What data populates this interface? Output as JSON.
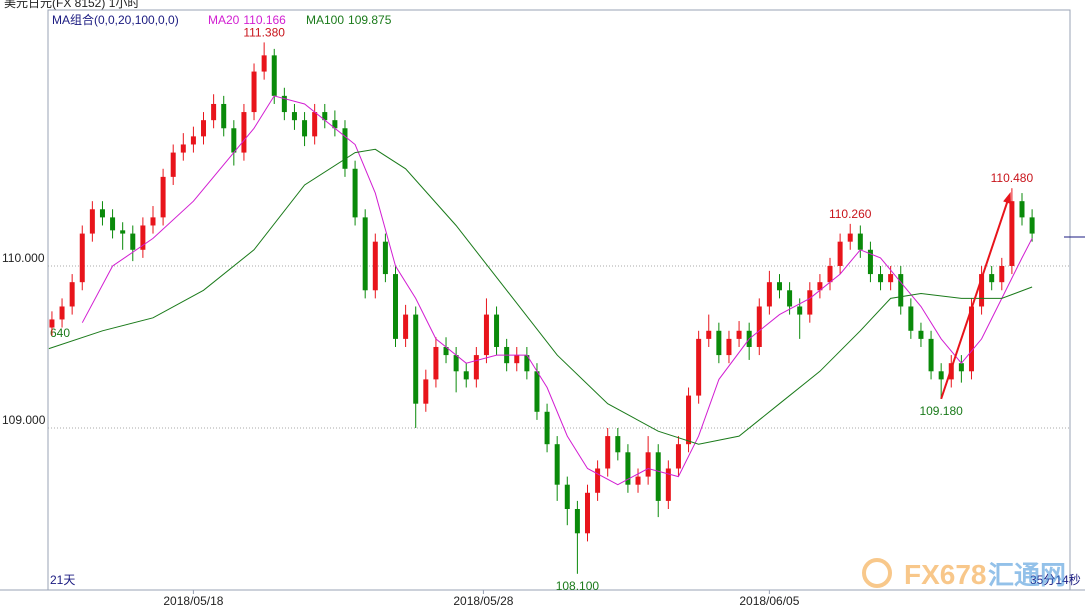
{
  "chart_data": {
    "type": "candlestick",
    "title": "美元日元(FX 8152)  1小时",
    "indicator": "MA组合(0,0,20,100,0,0)",
    "period_label": "21天",
    "countdown": "35分14秒",
    "edge_label": "640",
    "watermark": [
      "FX678",
      "汇通网"
    ],
    "up_color": "#e8141b",
    "down_color": "#0a8a0a",
    "ylim": [
      108.0,
      111.58
    ],
    "yticks": [
      {
        "value": 109,
        "label": "109.000"
      },
      {
        "value": 110,
        "label": "110.000"
      }
    ],
    "grid": true,
    "xlim": [
      -0.39,
      100.75
    ],
    "xticks": [
      {
        "value": 14,
        "label": "2018/05/18"
      },
      {
        "value": 42.7,
        "label": "2018/05/28"
      },
      {
        "value": 71,
        "label": "2018/06/05"
      }
    ],
    "ohlc": [
      [
        109.62,
        109.72,
        109.57,
        109.67
      ],
      [
        109.67,
        109.8,
        109.62,
        109.75
      ],
      [
        109.75,
        109.95,
        109.7,
        109.9
      ],
      [
        109.9,
        110.25,
        109.85,
        110.2
      ],
      [
        110.2,
        110.4,
        110.15,
        110.35
      ],
      [
        110.35,
        110.4,
        110.25,
        110.3
      ],
      [
        110.3,
        110.35,
        110.17,
        110.22
      ],
      [
        110.22,
        110.27,
        110.1,
        110.2
      ],
      [
        110.2,
        110.25,
        110.03,
        110.1
      ],
      [
        110.1,
        110.3,
        110.05,
        110.25
      ],
      [
        110.25,
        110.37,
        110.2,
        110.3
      ],
      [
        110.3,
        110.6,
        110.25,
        110.55
      ],
      [
        110.55,
        110.75,
        110.5,
        110.7
      ],
      [
        110.7,
        110.82,
        110.65,
        110.75
      ],
      [
        110.75,
        110.86,
        110.7,
        110.8
      ],
      [
        110.8,
        110.95,
        110.75,
        110.9
      ],
      [
        110.9,
        111.06,
        110.85,
        111.0
      ],
      [
        111.0,
        111.05,
        110.8,
        110.85
      ],
      [
        110.85,
        110.9,
        110.62,
        110.7
      ],
      [
        110.7,
        111.0,
        110.65,
        110.95
      ],
      [
        110.95,
        111.25,
        110.9,
        111.2
      ],
      [
        111.2,
        111.38,
        111.15,
        111.3
      ],
      [
        111.3,
        111.34,
        111.0,
        111.05
      ],
      [
        111.05,
        111.1,
        110.9,
        110.95
      ],
      [
        110.95,
        111.0,
        110.84,
        110.9
      ],
      [
        110.9,
        110.95,
        110.74,
        110.8
      ],
      [
        110.8,
        111.0,
        110.75,
        110.95
      ],
      [
        110.95,
        111.0,
        110.85,
        110.9
      ],
      [
        110.9,
        110.96,
        110.8,
        110.85
      ],
      [
        110.85,
        110.9,
        110.55,
        110.6
      ],
      [
        110.6,
        110.65,
        110.25,
        110.3
      ],
      [
        110.3,
        110.35,
        109.8,
        109.85
      ],
      [
        109.85,
        110.2,
        109.8,
        110.15
      ],
      [
        110.15,
        110.2,
        109.9,
        109.95
      ],
      [
        109.95,
        110.0,
        109.5,
        109.55
      ],
      [
        109.55,
        109.76,
        109.5,
        109.7
      ],
      [
        109.7,
        109.75,
        109.0,
        109.15
      ],
      [
        109.15,
        109.36,
        109.1,
        109.3
      ],
      [
        109.3,
        109.56,
        109.25,
        109.5
      ],
      [
        109.5,
        109.56,
        109.4,
        109.45
      ],
      [
        109.45,
        109.5,
        109.22,
        109.35
      ],
      [
        109.35,
        109.4,
        109.25,
        109.3
      ],
      [
        109.3,
        109.5,
        109.25,
        109.45
      ],
      [
        109.45,
        109.8,
        109.4,
        109.7
      ],
      [
        109.7,
        109.75,
        109.45,
        109.5
      ],
      [
        109.5,
        109.55,
        109.35,
        109.4
      ],
      [
        109.4,
        109.5,
        109.35,
        109.45
      ],
      [
        109.45,
        109.5,
        109.3,
        109.35
      ],
      [
        109.35,
        109.4,
        109.05,
        109.1
      ],
      [
        109.1,
        109.15,
        108.85,
        108.9
      ],
      [
        108.9,
        108.95,
        108.55,
        108.65
      ],
      [
        108.65,
        108.7,
        108.4,
        108.5
      ],
      [
        108.5,
        108.55,
        108.1,
        108.35
      ],
      [
        108.35,
        108.65,
        108.3,
        108.6
      ],
      [
        108.6,
        108.8,
        108.55,
        108.75
      ],
      [
        108.75,
        109.0,
        108.7,
        108.95
      ],
      [
        108.95,
        109.0,
        108.8,
        108.85
      ],
      [
        108.85,
        108.9,
        108.6,
        108.65
      ],
      [
        108.65,
        108.75,
        108.6,
        108.7
      ],
      [
        108.7,
        108.95,
        108.65,
        108.85
      ],
      [
        108.85,
        108.9,
        108.45,
        108.55
      ],
      [
        108.55,
        108.8,
        108.5,
        108.75
      ],
      [
        108.75,
        108.95,
        108.7,
        108.9
      ],
      [
        108.9,
        109.25,
        108.85,
        109.2
      ],
      [
        109.2,
        109.6,
        109.15,
        109.55
      ],
      [
        109.55,
        109.7,
        109.5,
        109.6
      ],
      [
        109.6,
        109.65,
        109.4,
        109.45
      ],
      [
        109.45,
        109.6,
        109.4,
        109.55
      ],
      [
        109.55,
        109.66,
        109.5,
        109.6
      ],
      [
        109.6,
        109.65,
        109.42,
        109.5
      ],
      [
        109.5,
        109.8,
        109.45,
        109.75
      ],
      [
        109.75,
        109.97,
        109.7,
        109.9
      ],
      [
        109.9,
        109.95,
        109.8,
        109.85
      ],
      [
        109.85,
        109.9,
        109.7,
        109.75
      ],
      [
        109.75,
        109.8,
        109.55,
        109.7
      ],
      [
        109.7,
        109.9,
        109.65,
        109.85
      ],
      [
        109.85,
        109.95,
        109.8,
        109.9
      ],
      [
        109.9,
        110.05,
        109.85,
        110.0
      ],
      [
        110.0,
        110.2,
        109.95,
        110.15
      ],
      [
        110.15,
        110.26,
        110.1,
        110.2
      ],
      [
        110.2,
        110.25,
        110.05,
        110.1
      ],
      [
        110.1,
        110.15,
        109.9,
        109.95
      ],
      [
        109.95,
        110.0,
        109.85,
        109.9
      ],
      [
        109.9,
        110.0,
        109.85,
        109.95
      ],
      [
        109.95,
        110.0,
        109.7,
        109.75
      ],
      [
        109.75,
        109.8,
        109.55,
        109.6
      ],
      [
        109.6,
        109.65,
        109.5,
        109.55
      ],
      [
        109.55,
        109.6,
        109.3,
        109.35
      ],
      [
        109.35,
        109.4,
        109.18,
        109.3
      ],
      [
        109.3,
        109.45,
        109.25,
        109.4
      ],
      [
        109.4,
        109.45,
        109.28,
        109.35
      ],
      [
        109.35,
        109.8,
        109.3,
        109.75
      ],
      [
        109.75,
        110.0,
        109.7,
        109.95
      ],
      [
        109.95,
        110.0,
        109.85,
        109.9
      ],
      [
        109.9,
        110.05,
        109.85,
        110.0
      ],
      [
        110.0,
        110.48,
        109.95,
        110.4
      ],
      [
        110.4,
        110.45,
        110.25,
        110.3
      ],
      [
        110.3,
        110.35,
        110.15,
        110.2
      ]
    ],
    "series": [
      {
        "name": "MA20",
        "latest": 110.166,
        "color": "#d21ed2",
        "x": [
          3,
          6,
          10,
          14,
          18,
          20,
          22,
          25,
          28,
          30,
          32,
          34,
          36,
          38,
          41,
          44,
          47,
          49,
          51,
          53,
          56,
          59,
          62,
          64,
          66,
          69,
          72,
          75,
          78,
          80,
          82,
          84,
          86,
          88,
          90,
          92,
          94,
          96,
          97
        ],
        "values": [
          109.65,
          110.0,
          110.17,
          110.4,
          110.7,
          110.85,
          111.05,
          111.0,
          110.85,
          110.75,
          110.45,
          110.0,
          109.8,
          109.55,
          109.4,
          109.45,
          109.45,
          109.25,
          108.95,
          108.75,
          108.65,
          108.75,
          108.7,
          108.95,
          109.3,
          109.55,
          109.7,
          109.8,
          109.95,
          110.1,
          110.05,
          109.9,
          109.75,
          109.55,
          109.4,
          109.55,
          109.8,
          110.05,
          110.17
        ]
      },
      {
        "name": "MA100",
        "latest": 109.875,
        "color": "#1a7a1a",
        "x": [
          -0.3,
          5,
          10,
          15,
          20,
          25,
          30,
          32,
          35,
          40,
          45,
          50,
          55,
          60,
          64,
          68,
          72,
          76,
          80,
          83,
          86,
          90,
          94,
          97
        ],
        "values": [
          109.49,
          109.6,
          109.68,
          109.85,
          110.1,
          110.5,
          110.7,
          110.72,
          110.6,
          110.25,
          109.85,
          109.45,
          109.15,
          108.98,
          108.9,
          108.95,
          109.15,
          109.35,
          109.6,
          109.8,
          109.83,
          109.8,
          109.8,
          109.87
        ]
      }
    ],
    "annotations": [
      {
        "text": "111.380",
        "x": 21,
        "y": 111.38,
        "kind": "high"
      },
      {
        "text": "110.260",
        "x": 79,
        "y": 110.26,
        "kind": "high"
      },
      {
        "text": "110.480",
        "x": 95,
        "y": 110.48,
        "kind": "high"
      },
      {
        "text": "109.180",
        "x": 88,
        "y": 109.18,
        "kind": "low"
      },
      {
        "text": "108.100",
        "x": 52,
        "y": 108.1,
        "kind": "low"
      }
    ],
    "arrow": {
      "from": 3,
      "to": 2
    }
  }
}
